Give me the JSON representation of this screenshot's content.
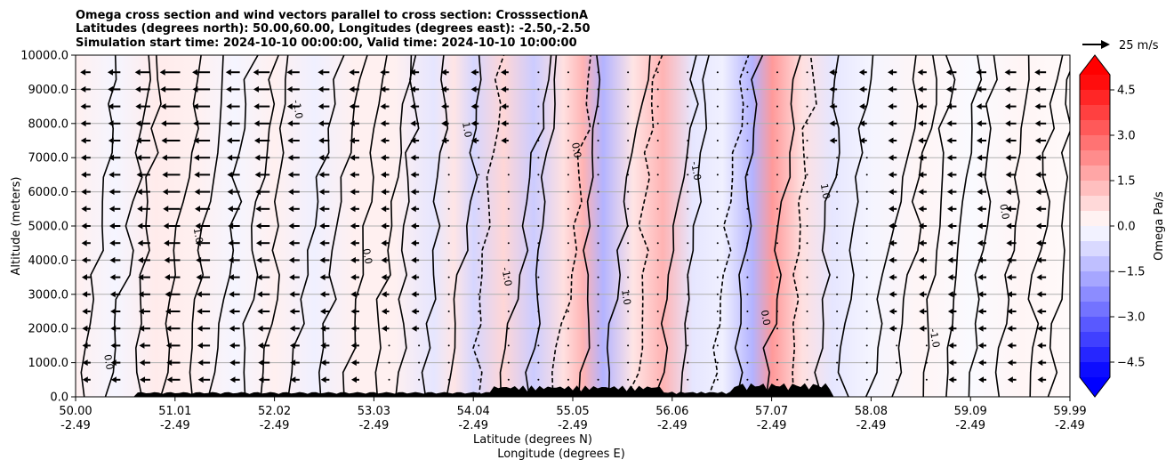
{
  "chart_data": {
    "type": "heatmap",
    "title_lines": [
      "Omega cross section and wind vectors parallel to cross section: CrosssectionA",
      "Latitudes (degrees north): 50.00,60.00, Longitudes (degrees east): -2.50,-2.50",
      "Simulation start time: 2024-10-10 00:00:00, Valid time: 2024-10-10 10:00:00"
    ],
    "ylabel": "Altitude (meters)",
    "xlabel_lines": [
      "Latitude (degrees N)",
      "Longitude (degrees E)"
    ],
    "ylim": [
      0,
      10000
    ],
    "xlim": [
      50.0,
      59.99
    ],
    "y_ticks": [
      "0.0",
      "1000.0",
      "2000.0",
      "3000.0",
      "4000.0",
      "5000.0",
      "6000.0",
      "7000.0",
      "8000.0",
      "9000.0",
      "10000.0"
    ],
    "x_ticks": [
      {
        "lat": "50.00",
        "lon": "-2.49"
      },
      {
        "lat": "51.01",
        "lon": "-2.49"
      },
      {
        "lat": "52.02",
        "lon": "-2.49"
      },
      {
        "lat": "53.03",
        "lon": "-2.49"
      },
      {
        "lat": "54.04",
        "lon": "-2.49"
      },
      {
        "lat": "55.05",
        "lon": "-2.49"
      },
      {
        "lat": "56.06",
        "lon": "-2.49"
      },
      {
        "lat": "57.07",
        "lon": "-2.49"
      },
      {
        "lat": "58.08",
        "lon": "-2.49"
      },
      {
        "lat": "59.09",
        "lon": "-2.49"
      },
      {
        "lat": "59.99",
        "lon": "-2.49"
      }
    ],
    "grid": "horizontal",
    "colorbar": {
      "label": "Omega Pa/s",
      "range": [
        -5.0,
        5.0
      ],
      "ticks": [
        "4.5",
        "3.0",
        "1.5",
        "0.0",
        "−1.5",
        "−3.0",
        "−4.5"
      ],
      "tick_values": [
        4.5,
        3.0,
        1.5,
        0.0,
        -1.5,
        -3.0,
        -4.5
      ],
      "cmap": "bwr",
      "extend": "both"
    },
    "quiver_key": "25 m/s",
    "contour_levels": [
      -1.0,
      0.0,
      1.0
    ],
    "contour_labels": [
      "0.0",
      "1.0",
      "-1.0"
    ],
    "omega_bands": [
      {
        "lat": 50.0,
        "omega": 0.3
      },
      {
        "lat": 50.4,
        "omega": -0.2
      },
      {
        "lat": 50.8,
        "omega": 0.4
      },
      {
        "lat": 51.2,
        "omega": 0.3
      },
      {
        "lat": 51.6,
        "omega": -0.2
      },
      {
        "lat": 52.0,
        "omega": 0.3
      },
      {
        "lat": 52.4,
        "omega": -0.3
      },
      {
        "lat": 52.8,
        "omega": 0.3
      },
      {
        "lat": 53.2,
        "omega": 0.3
      },
      {
        "lat": 53.6,
        "omega": -0.5
      },
      {
        "lat": 53.8,
        "omega": 0.5
      },
      {
        "lat": 54.0,
        "omega": -0.8
      },
      {
        "lat": 54.3,
        "omega": 0.8
      },
      {
        "lat": 54.6,
        "omega": -1.0
      },
      {
        "lat": 54.9,
        "omega": 0.6
      },
      {
        "lat": 55.1,
        "omega": 1.5
      },
      {
        "lat": 55.3,
        "omega": -1.5
      },
      {
        "lat": 55.6,
        "omega": 0.5
      },
      {
        "lat": 55.9,
        "omega": 1.5
      },
      {
        "lat": 56.2,
        "omega": -0.5
      },
      {
        "lat": 56.5,
        "omega": -0.3
      },
      {
        "lat": 56.8,
        "omega": -1.5
      },
      {
        "lat": 57.0,
        "omega": 2.0
      },
      {
        "lat": 57.3,
        "omega": 0.6
      },
      {
        "lat": 57.6,
        "omega": -0.5
      },
      {
        "lat": 58.0,
        "omega": -0.2
      },
      {
        "lat": 58.5,
        "omega": 0.2
      },
      {
        "lat": 59.0,
        "omega": -0.1
      },
      {
        "lat": 59.5,
        "omega": 0.2
      },
      {
        "lat": 59.99,
        "omega": 0.1
      }
    ],
    "wind_vectors": [
      {
        "lat": 50.15,
        "u": -4
      },
      {
        "lat": 50.45,
        "u": -6
      },
      {
        "lat": 50.75,
        "u": -8
      },
      {
        "lat": 51.05,
        "u": -12
      },
      {
        "lat": 51.35,
        "u": -10
      },
      {
        "lat": 51.65,
        "u": -7
      },
      {
        "lat": 51.95,
        "u": -9
      },
      {
        "lat": 52.25,
        "u": -6
      },
      {
        "lat": 52.55,
        "u": -5
      },
      {
        "lat": 52.85,
        "u": -4
      },
      {
        "lat": 53.15,
        "u": -3
      },
      {
        "lat": 53.45,
        "u": -3
      },
      {
        "lat": 53.75,
        "u": -2
      },
      {
        "lat": 54.05,
        "u": -2
      },
      {
        "lat": 54.35,
        "u": -2
      },
      {
        "lat": 54.65,
        "u": -1
      },
      {
        "lat": 54.95,
        "u": -1
      },
      {
        "lat": 55.25,
        "u": -1
      },
      {
        "lat": 55.55,
        "u": -1
      },
      {
        "lat": 55.85,
        "u": -1
      },
      {
        "lat": 56.15,
        "u": -1
      },
      {
        "lat": 56.45,
        "u": -1
      },
      {
        "lat": 56.75,
        "u": 1
      },
      {
        "lat": 57.05,
        "u": 1
      },
      {
        "lat": 57.35,
        "u": -1
      },
      {
        "lat": 57.65,
        "u": -2
      },
      {
        "lat": 57.95,
        "u": -2
      },
      {
        "lat": 58.25,
        "u": -3
      },
      {
        "lat": 58.55,
        "u": -3
      },
      {
        "lat": 58.85,
        "u": -4
      },
      {
        "lat": 59.15,
        "u": -4
      },
      {
        "lat": 59.45,
        "u": -5
      },
      {
        "lat": 59.75,
        "u": -5
      }
    ]
  }
}
